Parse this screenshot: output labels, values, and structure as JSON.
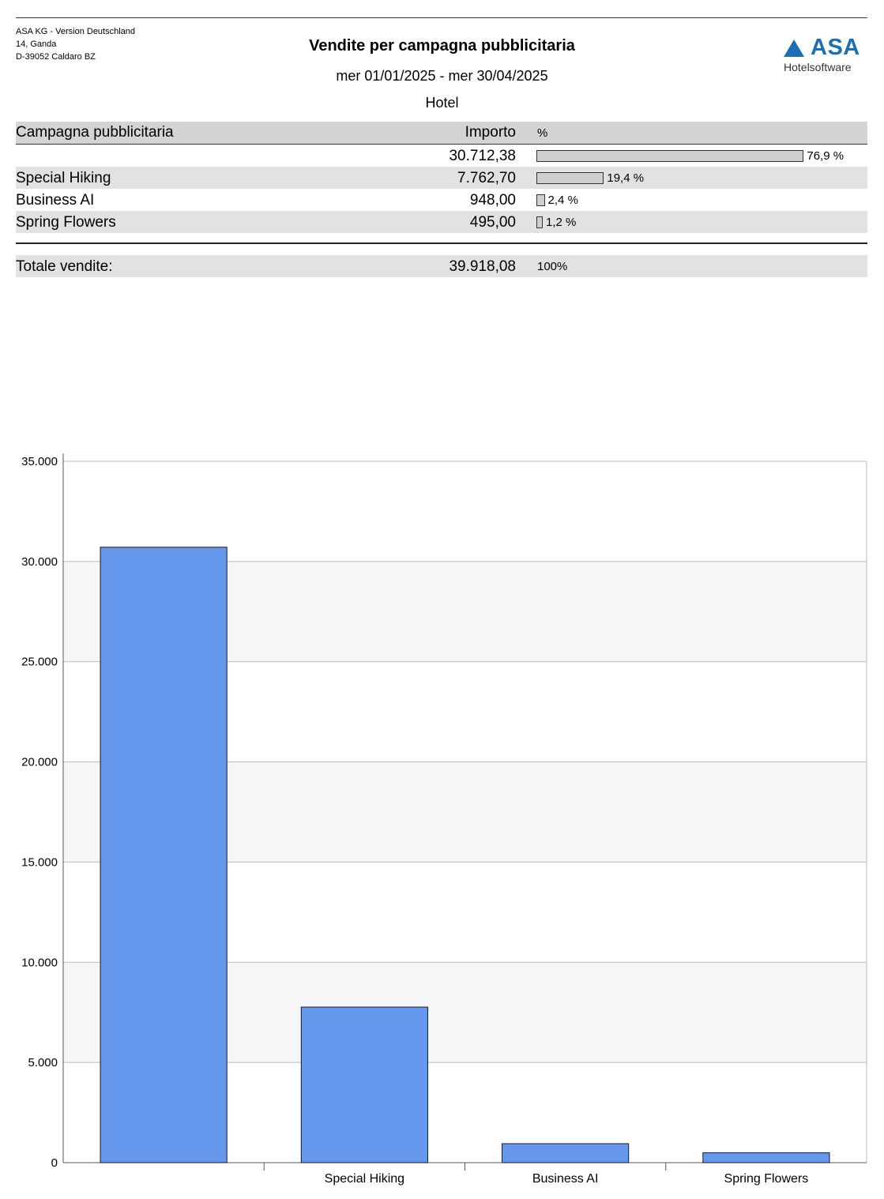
{
  "company": {
    "line1": "ASA KG - Version Deutschland",
    "line2": "14, Ganda",
    "line3": "D-39052 Caldaro BZ"
  },
  "report": {
    "title": "Vendite per campagna pubblicitaria",
    "period": "mer 01/01/2025 - mer 30/04/2025",
    "department": "Hotel"
  },
  "logo": {
    "word": "ASA",
    "sub": "Hotelsoftware",
    "color": "#1a6fb5"
  },
  "table": {
    "headers": {
      "campaign": "Campagna pubblicitaria",
      "amount": "Importo",
      "percent": "%"
    },
    "rows": [
      {
        "campaign": "",
        "amount": "30.712,38",
        "percent": "76,9 %",
        "share": 0.769
      },
      {
        "campaign": "Special Hiking",
        "amount": "7.762,70",
        "percent": "19,4 %",
        "share": 0.194
      },
      {
        "campaign": "Business AI",
        "amount": "948,00",
        "percent": "2,4 %",
        "share": 0.024
      },
      {
        "campaign": "Spring Flowers",
        "amount": "495,00",
        "percent": "1,2 %",
        "share": 0.012
      }
    ],
    "total": {
      "label": "Totale vendite:",
      "amount": "39.918,08",
      "percent": "100%"
    }
  },
  "chart_data": {
    "type": "bar",
    "categories": [
      "",
      "Special Hiking",
      "Business AI",
      "Spring Flowers"
    ],
    "values": [
      30712.38,
      7762.7,
      948.0,
      495.0
    ],
    "title": "",
    "xlabel": "",
    "ylabel": "",
    "ylim": [
      0,
      35000
    ],
    "yticks": [
      0,
      5000,
      10000,
      15000,
      20000,
      25000,
      30000,
      35000
    ],
    "ytick_labels": [
      "0",
      "5.000",
      "10.000",
      "15.000",
      "20.000",
      "25.000",
      "30.000",
      "35.000"
    ],
    "grid": true,
    "bar_color": "#6699ee"
  }
}
